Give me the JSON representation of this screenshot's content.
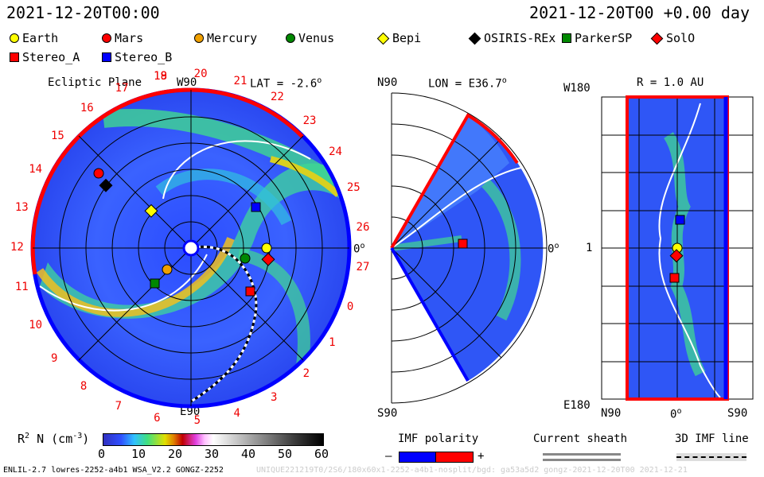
{
  "header": {
    "left_date": "2021-12-20T00:00",
    "right_date": "2021-12-20T00 +0.00 day"
  },
  "legend": [
    {
      "name": "Earth",
      "color": "#ffff00",
      "shape": "circle"
    },
    {
      "name": "Mars",
      "color": "#ff0000",
      "shape": "circle"
    },
    {
      "name": "Mercury",
      "color": "#f0a000",
      "shape": "circle"
    },
    {
      "name": "Venus",
      "color": "#008000",
      "shape": "circle"
    },
    {
      "name": "Bepi",
      "color": "#ffff00",
      "shape": "diamond"
    },
    {
      "name": "OSIRIS-REx",
      "color": "#000000",
      "shape": "diamond"
    },
    {
      "name": "ParkerSP",
      "color": "#008000",
      "shape": "square"
    },
    {
      "name": "SolO",
      "color": "#ff0000",
      "shape": "diamond"
    },
    {
      "name": "Stereo_A",
      "color": "#ff0000",
      "shape": "square"
    },
    {
      "name": "Stereo_B",
      "color": "#0000ff",
      "shape": "square"
    }
  ],
  "panel1": {
    "title": "Ecliptic Plane",
    "top_label": "W90",
    "lat_label": "LAT = -2.6",
    "degree": "o",
    "bottom_label": "E90",
    "right_label": "0",
    "sectors": [
      "19",
      "20",
      "21",
      "22",
      "23",
      "24",
      "25",
      "26",
      "27",
      "0",
      "1",
      "2",
      "3",
      "4",
      "5",
      "6",
      "7",
      "8",
      "9",
      "10",
      "11",
      "12",
      "13",
      "14",
      "15",
      "16",
      "17",
      "18"
    ]
  },
  "panel2": {
    "top_label": "N90",
    "lon_label": "LON = E36.7",
    "degree": "o",
    "bottom_label": "S90",
    "right_label": "0"
  },
  "panel3": {
    "r_label": "R = 1.0 AU",
    "top_label": "W180",
    "mid_label": "1",
    "bottom_label": "E180",
    "x_left": "N90",
    "x_mid": "0",
    "x_right": "S90"
  },
  "colorbar": {
    "label": "R",
    "label_sup": "2",
    "label_rest": " N (cm",
    "label_exp": "-3",
    "label_end": ")",
    "ticks": [
      "0",
      "10",
      "20",
      "30",
      "40",
      "50",
      "60"
    ]
  },
  "imf": {
    "title": "IMF polarity",
    "minus": "–",
    "plus": "+",
    "sheath": "Current sheath",
    "line3d": "3D IMF line"
  },
  "footer": {
    "left": "ENLIL-2.7 lowres-2252-a4b1 WSA_V2.2 GONGZ-2252",
    "right": "UNIQUE221219T0/2S6/180x60x1-2252-a4b1-nosplit/bgd: ga53a5d2 gongz-2021-12-20T00 2021-12-21"
  }
}
